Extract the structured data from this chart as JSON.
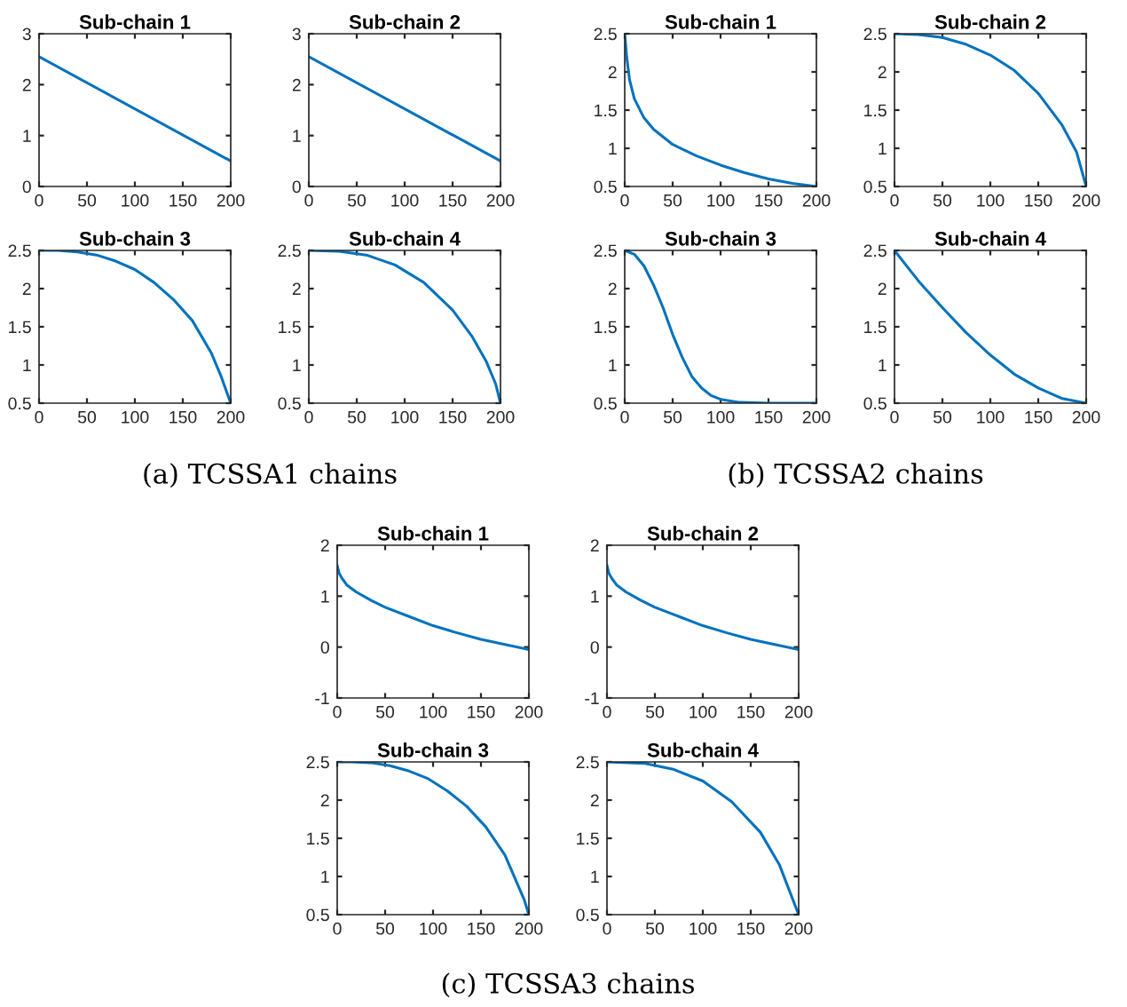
{
  "chart_data": [
    {
      "type": "line",
      "title": "Sub-chain 1",
      "x": [
        0,
        200
      ],
      "series": [
        {
          "color": "#0072bd",
          "values": [
            2.55,
            0.5
          ]
        }
      ],
      "xlim": [
        0,
        200
      ],
      "xticks": [
        0,
        50,
        100,
        150,
        200
      ],
      "ylim": [
        0,
        3
      ],
      "yticks": [
        0,
        1,
        2,
        3
      ]
    },
    {
      "type": "line",
      "title": "Sub-chain 2",
      "x": [
        0,
        200
      ],
      "series": [
        {
          "color": "#0072bd",
          "values": [
            2.55,
            0.5
          ]
        }
      ],
      "xlim": [
        0,
        200
      ],
      "xticks": [
        0,
        50,
        100,
        150,
        200
      ],
      "ylim": [
        0,
        3
      ],
      "yticks": [
        0,
        1,
        2,
        3
      ]
    },
    {
      "type": "line",
      "title": "Sub-chain 1",
      "x": [
        0,
        2,
        5,
        10,
        20,
        30,
        50,
        75,
        100,
        125,
        150,
        175,
        200
      ],
      "series": [
        {
          "color": "#0072bd",
          "values": [
            2.5,
            2.2,
            1.9,
            1.65,
            1.4,
            1.25,
            1.05,
            0.9,
            0.78,
            0.68,
            0.6,
            0.54,
            0.5
          ]
        }
      ],
      "xlim": [
        0,
        200
      ],
      "xticks": [
        0,
        50,
        100,
        150,
        200
      ],
      "ylim": [
        0.5,
        2.5
      ],
      "yticks": [
        0.5,
        1,
        1.5,
        2,
        2.5
      ]
    },
    {
      "type": "line",
      "title": "Sub-chain 2",
      "x": [
        0,
        25,
        50,
        75,
        100,
        125,
        150,
        175,
        190,
        200
      ],
      "series": [
        {
          "color": "#0072bd",
          "values": [
            2.5,
            2.49,
            2.45,
            2.36,
            2.22,
            2.02,
            1.72,
            1.3,
            0.95,
            0.5
          ]
        }
      ],
      "xlim": [
        0,
        200
      ],
      "xticks": [
        0,
        50,
        100,
        150,
        200
      ],
      "ylim": [
        0.5,
        2.5
      ],
      "yticks": [
        0.5,
        1,
        1.5,
        2,
        2.5
      ]
    },
    {
      "type": "line",
      "title": "Sub-chain 3",
      "x": [
        0,
        20,
        40,
        60,
        80,
        100,
        120,
        140,
        160,
        180,
        190,
        200
      ],
      "series": [
        {
          "color": "#0072bd",
          "values": [
            2.5,
            2.5,
            2.48,
            2.44,
            2.36,
            2.25,
            2.08,
            1.86,
            1.58,
            1.15,
            0.85,
            0.5
          ]
        }
      ],
      "xlim": [
        0,
        200
      ],
      "xticks": [
        0,
        50,
        100,
        150,
        200
      ],
      "ylim": [
        0.5,
        2.5
      ],
      "yticks": [
        0.5,
        1,
        1.5,
        2,
        2.5
      ],
      "annotations": [
        "(a) TCSSA1 chains"
      ]
    },
    {
      "type": "line",
      "title": "Sub-chain 4",
      "x": [
        0,
        30,
        60,
        90,
        120,
        150,
        170,
        185,
        195,
        200
      ],
      "series": [
        {
          "color": "#0072bd",
          "values": [
            2.5,
            2.49,
            2.44,
            2.31,
            2.08,
            1.72,
            1.38,
            1.05,
            0.75,
            0.5
          ]
        }
      ],
      "xlim": [
        0,
        200
      ],
      "xticks": [
        0,
        50,
        100,
        150,
        200
      ],
      "ylim": [
        0.5,
        2.5
      ],
      "yticks": [
        0.5,
        1,
        1.5,
        2,
        2.5
      ]
    },
    {
      "type": "line",
      "title": "Sub-chain 3",
      "x": [
        0,
        10,
        20,
        30,
        40,
        50,
        60,
        70,
        80,
        90,
        100,
        120,
        150,
        200
      ],
      "series": [
        {
          "color": "#0072bd",
          "values": [
            2.5,
            2.45,
            2.3,
            2.05,
            1.75,
            1.4,
            1.1,
            0.85,
            0.7,
            0.6,
            0.55,
            0.51,
            0.5,
            0.5
          ]
        }
      ],
      "xlim": [
        0,
        200
      ],
      "xticks": [
        0,
        50,
        100,
        150,
        200
      ],
      "ylim": [
        0.5,
        2.5
      ],
      "yticks": [
        0.5,
        1,
        1.5,
        2,
        2.5
      ],
      "annotations": [
        "(b) TCSSA2 chains"
      ]
    },
    {
      "type": "line",
      "title": "Sub-chain 4",
      "x": [
        0,
        25,
        50,
        75,
        100,
        125,
        150,
        175,
        200
      ],
      "series": [
        {
          "color": "#0072bd",
          "values": [
            2.5,
            2.1,
            1.75,
            1.42,
            1.13,
            0.88,
            0.7,
            0.56,
            0.5
          ]
        }
      ],
      "xlim": [
        0,
        200
      ],
      "xticks": [
        0,
        50,
        100,
        150,
        200
      ],
      "ylim": [
        0.5,
        2.5
      ],
      "yticks": [
        0.5,
        1,
        1.5,
        2,
        2.5
      ]
    },
    {
      "type": "line",
      "title": "Sub-chain 1",
      "x": [
        0,
        2,
        5,
        10,
        20,
        35,
        50,
        75,
        100,
        125,
        150,
        175,
        200
      ],
      "series": [
        {
          "color": "#0072bd",
          "values": [
            1.6,
            1.45,
            1.35,
            1.22,
            1.08,
            0.92,
            0.78,
            0.6,
            0.42,
            0.28,
            0.15,
            0.05,
            -0.05
          ]
        }
      ],
      "xlim": [
        0,
        200
      ],
      "xticks": [
        0,
        50,
        100,
        150,
        200
      ],
      "ylim": [
        -1,
        2
      ],
      "yticks": [
        -1,
        0,
        1,
        2
      ]
    },
    {
      "type": "line",
      "title": "Sub-chain 2",
      "x": [
        0,
        2,
        5,
        10,
        20,
        35,
        50,
        75,
        100,
        125,
        150,
        175,
        200
      ],
      "series": [
        {
          "color": "#0072bd",
          "values": [
            1.6,
            1.45,
            1.35,
            1.22,
            1.08,
            0.92,
            0.78,
            0.6,
            0.42,
            0.28,
            0.15,
            0.05,
            -0.05
          ]
        }
      ],
      "xlim": [
        0,
        200
      ],
      "xticks": [
        0,
        50,
        100,
        150,
        200
      ],
      "ylim": [
        -1,
        2
      ],
      "yticks": [
        -1,
        0,
        1,
        2
      ]
    },
    {
      "type": "line",
      "title": "Sub-chain 3",
      "x": [
        0,
        15,
        35,
        55,
        75,
        95,
        115,
        135,
        155,
        175,
        195,
        200
      ],
      "series": [
        {
          "color": "#0072bd",
          "values": [
            2.5,
            2.5,
            2.49,
            2.45,
            2.38,
            2.28,
            2.12,
            1.92,
            1.65,
            1.28,
            0.7,
            0.5
          ]
        }
      ],
      "xlim": [
        0,
        200
      ],
      "xticks": [
        0,
        50,
        100,
        150,
        200
      ],
      "ylim": [
        0.5,
        2.5
      ],
      "yticks": [
        0.5,
        1,
        1.5,
        2,
        2.5
      ],
      "annotations": [
        "(c) TCSSA3 chains"
      ]
    },
    {
      "type": "line",
      "title": "Sub-chain 4",
      "x": [
        0,
        40,
        70,
        100,
        130,
        160,
        180,
        200
      ],
      "series": [
        {
          "color": "#0072bd",
          "values": [
            2.5,
            2.48,
            2.4,
            2.25,
            1.98,
            1.58,
            1.15,
            0.5
          ]
        }
      ],
      "xlim": [
        0,
        200
      ],
      "xticks": [
        0,
        50,
        100,
        150,
        200
      ],
      "ylim": [
        0.5,
        2.5
      ],
      "yticks": [
        0.5,
        1,
        1.5,
        2,
        2.5
      ]
    }
  ]
}
